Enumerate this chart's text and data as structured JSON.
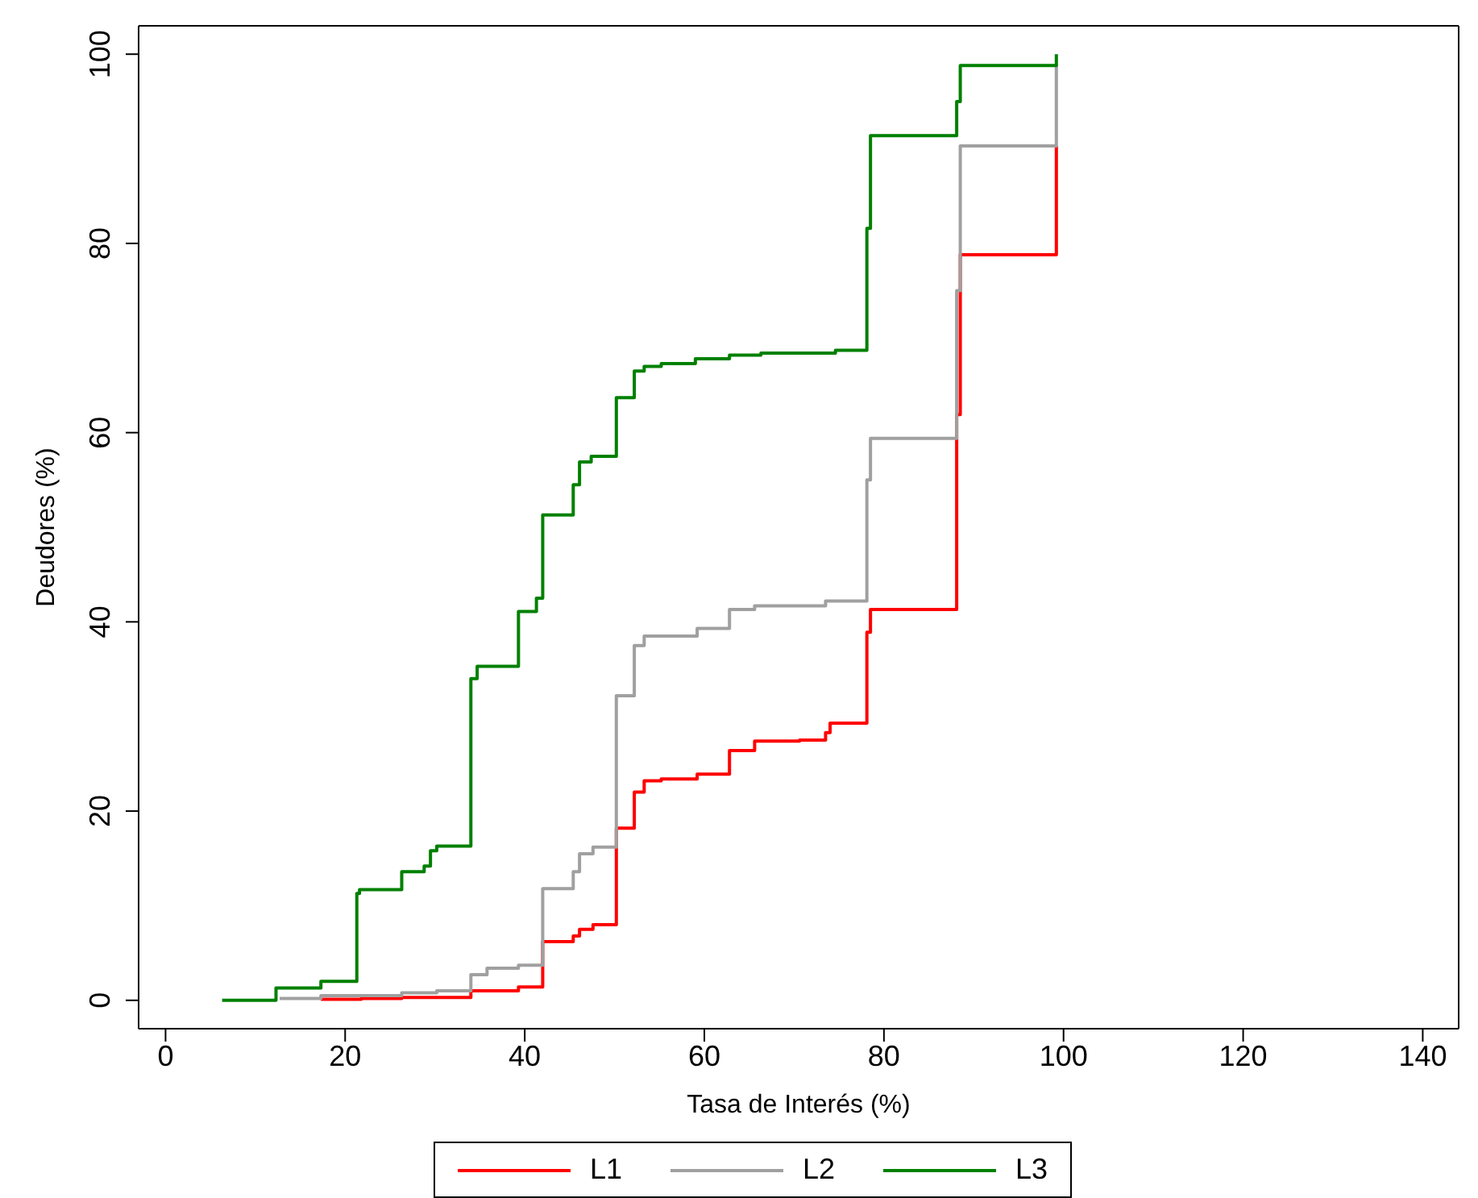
{
  "chart_data": {
    "type": "step",
    "xlabel": "Tasa de Interés (%)",
    "ylabel": "Deudores (%)",
    "xlim": [
      -3,
      144
    ],
    "ylim": [
      -3,
      103
    ],
    "xticks": [
      0,
      20,
      40,
      60,
      80,
      100,
      120,
      140
    ],
    "yticks": [
      0,
      20,
      40,
      60,
      80,
      100
    ],
    "legend": "bottom",
    "line_style": "solid",
    "marker": "none",
    "series": [
      {
        "name": "L1",
        "color": "#ff0000",
        "x": [
          17.3,
          21.8,
          26.3,
          34,
          39.3,
          42,
          45.4,
          46.1,
          47.6,
          50.2,
          52.2,
          53.3,
          55.2,
          59.2,
          62.8,
          65.6,
          70.6,
          73.5,
          74,
          78.1,
          78.5,
          88.1,
          88.5,
          99.2
        ],
        "values": [
          0.1,
          0.2,
          0.3,
          1,
          1.4,
          6.2,
          6.8,
          7.5,
          8,
          18.2,
          22,
          23.2,
          23.4,
          23.9,
          26.4,
          27.4,
          27.5,
          28.3,
          29.3,
          38.9,
          41.3,
          61.9,
          78.8,
          90.3
        ]
      },
      {
        "name": "L2",
        "color": "#a0a0a0",
        "x": [
          12.7,
          17.3,
          21.8,
          26.3,
          30.2,
          34,
          35.8,
          39.3,
          42,
          45.4,
          46.1,
          47.6,
          50.2,
          52.2,
          53.3,
          59.2,
          62.8,
          65.6,
          73.5,
          78.1,
          78.5,
          88.1,
          88.5,
          99.2
        ],
        "values": [
          0.2,
          0.5,
          0.5,
          0.8,
          1,
          2.7,
          3.4,
          3.7,
          11.8,
          13.6,
          15.5,
          16.2,
          32.2,
          37.5,
          38.5,
          39.3,
          41.3,
          41.7,
          42.2,
          55,
          59.4,
          75,
          90.3,
          98.8
        ]
      },
      {
        "name": "L3",
        "color": "#008000",
        "x": [
          6.3,
          12.3,
          17.3,
          21.3,
          21.6,
          26.3,
          28.8,
          29.5,
          30.2,
          34,
          34.7,
          39.3,
          41.3,
          42,
          45.4,
          46.1,
          47.4,
          50.2,
          52.2,
          53.3,
          55.2,
          59,
          62.8,
          66.3,
          74.6,
          78.1,
          78.5,
          88.1,
          88.5,
          99.2
        ],
        "values": [
          0,
          1.3,
          2,
          11.3,
          11.7,
          13.6,
          14.2,
          15.8,
          16.3,
          34,
          35.3,
          41.1,
          42.5,
          51.3,
          54.5,
          56.9,
          57.5,
          63.7,
          66.5,
          67,
          67.3,
          67.8,
          68.2,
          68.4,
          68.7,
          81.6,
          91.4,
          95,
          98.8,
          100
        ]
      }
    ]
  }
}
